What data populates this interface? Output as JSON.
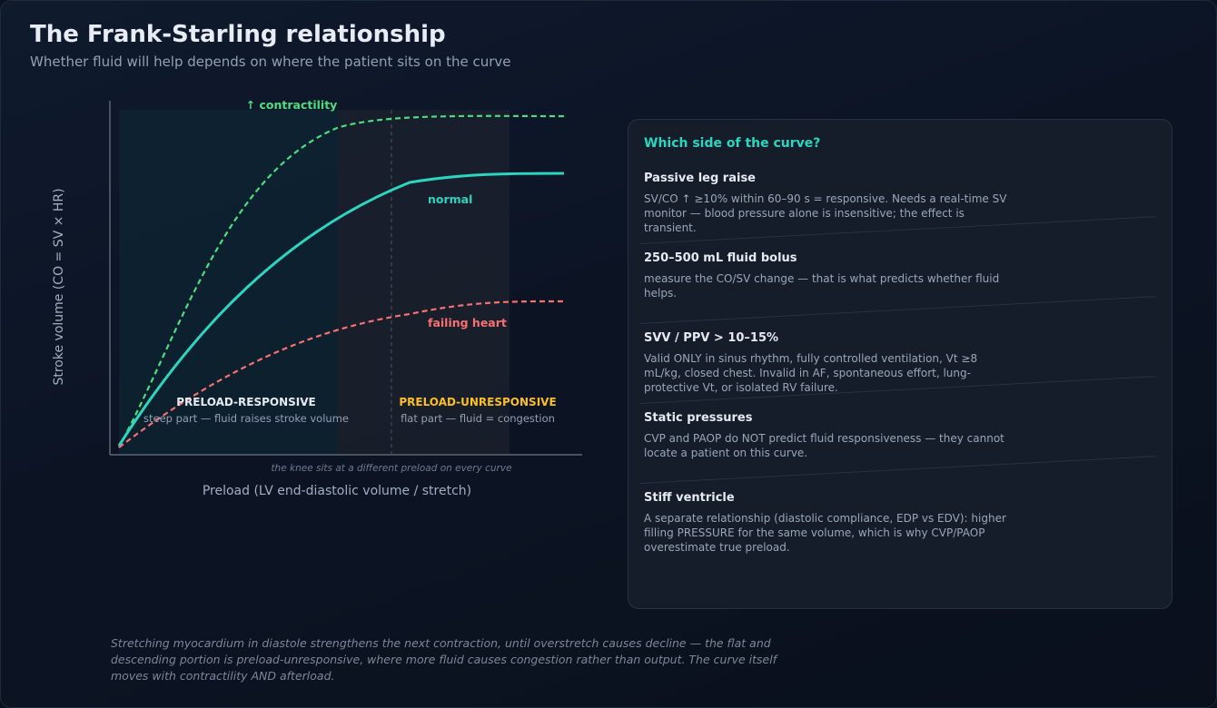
{
  "header": {
    "title": "The Frank-Starling relationship",
    "subtitle": "Whether fluid will help depends on where the patient sits on the curve"
  },
  "diagram": {
    "y_axis_label": "Stroke volume (CO = SV × HR)",
    "x_axis_label": "Preload (LV end-diastolic volume / stretch)",
    "knee_note": "the knee sits at a different preload on every curve",
    "curves": {
      "contractility": {
        "label": "↑ contractility",
        "color": "#4ade80"
      },
      "normal": {
        "label": "normal",
        "color": "#2dd4bf"
      },
      "failing": {
        "label": "failing heart",
        "color": "#f87171"
      }
    },
    "zones": {
      "responsive": {
        "title": "PRELOAD-RESPONSIVE",
        "desc": "steep part — fluid raises stroke volume",
        "color": "#e6ebf2"
      },
      "unresponsive": {
        "title": "PRELOAD-UNRESPONSIVE",
        "desc": "flat part — fluid = congestion",
        "color": "#fbbf24"
      }
    }
  },
  "panel": {
    "heading": "Which side of the curve?",
    "items": [
      {
        "title": "Passive leg raise",
        "desc": "SV/CO ↑ ≥10% within 60–90 s = responsive. Needs a real-time SV monitor — blood pressure alone is insensitive; the effect is transient."
      },
      {
        "title": "250–500 mL fluid bolus",
        "desc": "measure the CO/SV change — that is what predicts whether fluid helps."
      },
      {
        "title": "SVV / PPV > 10–15%",
        "desc": "Valid ONLY in sinus rhythm, fully controlled ventilation, Vt ≥8 mL/kg, closed chest. Invalid in AF, spontaneous effort, lung-protective Vt, or isolated RV failure."
      },
      {
        "title": "Static pressures",
        "desc": "CVP and PAOP do NOT predict fluid responsiveness — they cannot locate a patient on this curve."
      },
      {
        "title": "Stiff ventricle",
        "desc": "A separate relationship (diastolic compliance, EDP vs EDV): higher filling PRESSURE for the same volume, which is why CVP/PAOP overestimate true preload."
      }
    ]
  },
  "footnote": "Stretching myocardium in diastole strengthens the next contraction, until overstretch causes decline — the flat and descending portion is preload-unresponsive, where more fluid causes congestion rather than output. The curve itself moves with contractility AND afterload."
}
